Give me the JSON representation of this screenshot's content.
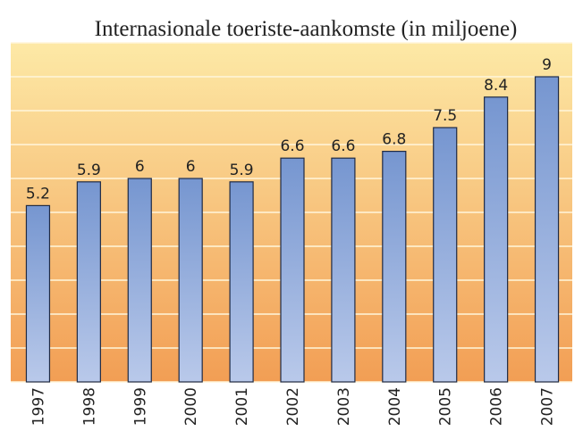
{
  "chart_data": {
    "type": "bar",
    "title": "Internasionale toeriste-aankomste (in miljoene)",
    "categories": [
      "1997",
      "1998",
      "1999",
      "2000",
      "2001",
      "2002",
      "2003",
      "2004",
      "2005",
      "2006",
      "2007"
    ],
    "values": [
      5.2,
      5.9,
      6,
      6,
      5.9,
      6.6,
      6.6,
      6.8,
      7.5,
      8.4,
      9
    ],
    "color": "#7f9fd3",
    "ylim": [
      0,
      10
    ],
    "yticks": [
      0,
      1,
      2,
      3,
      4,
      5,
      6,
      7,
      8,
      9,
      10
    ],
    "grid": true
  }
}
